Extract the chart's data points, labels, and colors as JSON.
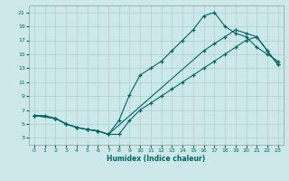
{
  "xlabel": "Humidex (Indice chaleur)",
  "bg_color": "#cce8e8",
  "grid_color": "#aad0d0",
  "line_color": "#006666",
  "xlim": [
    -0.5,
    23.5
  ],
  "ylim": [
    2.0,
    22.0
  ],
  "xticks": [
    0,
    1,
    2,
    3,
    4,
    5,
    6,
    7,
    8,
    9,
    10,
    11,
    12,
    13,
    14,
    15,
    16,
    17,
    18,
    19,
    20,
    21,
    22,
    23
  ],
  "yticks": [
    3,
    5,
    7,
    9,
    11,
    13,
    15,
    17,
    19,
    21
  ],
  "line1_x": [
    0,
    1,
    2,
    3,
    4,
    5,
    6,
    7,
    8,
    9,
    10,
    11,
    12,
    13,
    14,
    15,
    16,
    17,
    18,
    19,
    20,
    21,
    22,
    23
  ],
  "line1_y": [
    6.2,
    6.2,
    5.8,
    5.0,
    4.5,
    4.2,
    4.0,
    3.5,
    5.5,
    9.2,
    12.0,
    13.0,
    14.0,
    15.5,
    17.0,
    18.5,
    20.5,
    21.0,
    19.0,
    18.0,
    17.5,
    16.0,
    15.0,
    14.0
  ],
  "line2_x": [
    0,
    2,
    3,
    4,
    5,
    6,
    7,
    8,
    9,
    10,
    11,
    12,
    13,
    14,
    15,
    16,
    17,
    18,
    19,
    20,
    21,
    22,
    23
  ],
  "line2_y": [
    6.2,
    5.8,
    5.0,
    4.5,
    4.2,
    4.0,
    3.5,
    3.5,
    5.5,
    7.0,
    8.0,
    9.0,
    10.0,
    11.0,
    12.0,
    13.0,
    14.0,
    15.0,
    16.0,
    17.0,
    17.5,
    15.5,
    13.5
  ],
  "line3_x": [
    0,
    2,
    3,
    4,
    5,
    6,
    7,
    16,
    17,
    18,
    19,
    20,
    21,
    22,
    23
  ],
  "line3_y": [
    6.2,
    5.8,
    5.0,
    4.5,
    4.2,
    4.0,
    3.5,
    15.5,
    16.5,
    17.5,
    18.5,
    18.0,
    17.5,
    15.5,
    13.5
  ]
}
